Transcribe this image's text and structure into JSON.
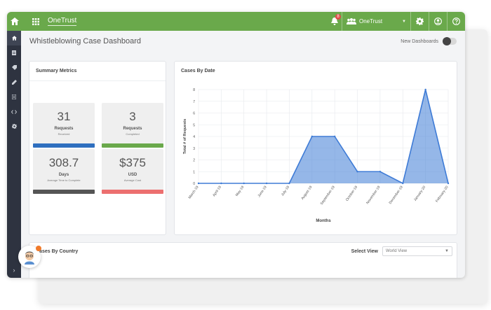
{
  "topbar": {
    "brand": "OneTrust",
    "notifications_count": "8",
    "org_label": "OneTrust"
  },
  "page": {
    "title": "Whistleblowing Case Dashboard",
    "new_dashboards_label": "New Dashboards"
  },
  "summary": {
    "title": "Summary Metrics",
    "metrics": [
      {
        "value": "31",
        "unit": "Requests",
        "sub": "Received",
        "color": "#2f6fbf"
      },
      {
        "value": "3",
        "unit": "Requests",
        "sub": "Completed",
        "color": "#6aa94b"
      },
      {
        "value": "308.7",
        "unit": "Days",
        "sub": "Average Time to Complete",
        "color": "#555555"
      },
      {
        "value": "$375",
        "unit": "USD",
        "sub": "Average Cost",
        "color": "#ec6f6f"
      }
    ]
  },
  "cases_by_date": {
    "title": "Cases By Date"
  },
  "chart_data": {
    "type": "area",
    "title": "Cases By Date",
    "xlabel": "Months",
    "ylabel": "Total # of Requests",
    "categories": [
      "March-19",
      "April-19",
      "May-19",
      "June-19",
      "July-19",
      "August-19",
      "September-19",
      "October-19",
      "November-19",
      "December-19",
      "January-20",
      "February-20"
    ],
    "values": [
      0,
      0,
      0,
      0,
      0,
      4,
      4,
      1,
      1,
      0,
      8,
      0
    ],
    "ylim": [
      0,
      8
    ],
    "yticks": [
      0,
      1,
      2,
      3,
      4,
      5,
      6,
      7,
      8
    ],
    "grid": true,
    "color": "#3e7bd6"
  },
  "country": {
    "title": "Cases By Country",
    "select_label": "Select View",
    "select_value": "World View"
  }
}
